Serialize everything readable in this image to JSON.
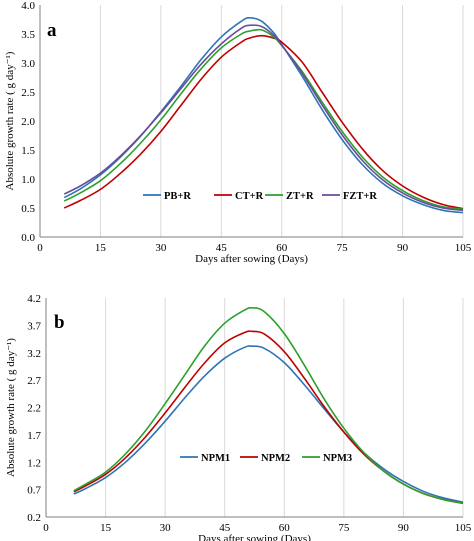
{
  "chart_data": [
    {
      "type": "line",
      "panel_label": "a",
      "xlabel": "Days after sowing (Days)",
      "ylabel": "Absolute growth rate ( g day⁻¹)",
      "xlim": [
        0,
        105
      ],
      "ylim": [
        0,
        4.0
      ],
      "x_ticks": [
        0,
        15,
        30,
        45,
        60,
        75,
        90,
        105
      ],
      "y_ticks": [
        0.0,
        0.5,
        1.0,
        1.5,
        2.0,
        2.5,
        3.0,
        3.5,
        4.0
      ],
      "y_tick_labels": [
        "0.0",
        "0.5",
        "1.0",
        "1.5",
        "2.0",
        "2.5",
        "3.0",
        "3.5",
        "4.0"
      ],
      "grid": "vertical",
      "legend_position": "bottom-center",
      "x": [
        6,
        10,
        15,
        20,
        25,
        30,
        35,
        40,
        45,
        50,
        52,
        55,
        58,
        60,
        65,
        70,
        75,
        80,
        85,
        90,
        95,
        100,
        105
      ],
      "series": [
        {
          "name": "PB+R",
          "color": "#2e75b6",
          "values": [
            0.68,
            0.83,
            1.07,
            1.38,
            1.74,
            2.16,
            2.6,
            3.06,
            3.45,
            3.72,
            3.78,
            3.72,
            3.52,
            3.32,
            2.78,
            2.2,
            1.68,
            1.25,
            0.93,
            0.71,
            0.56,
            0.46,
            0.42
          ]
        },
        {
          "name": "CT+R",
          "color": "#c00000",
          "values": [
            0.5,
            0.63,
            0.82,
            1.1,
            1.43,
            1.82,
            2.27,
            2.72,
            3.1,
            3.36,
            3.43,
            3.47,
            3.43,
            3.36,
            3.02,
            2.5,
            1.98,
            1.52,
            1.15,
            0.88,
            0.69,
            0.56,
            0.49
          ]
        },
        {
          "name": "ZT+R",
          "color": "#2ca02c",
          "values": [
            0.62,
            0.76,
            0.97,
            1.27,
            1.62,
            2.02,
            2.47,
            2.9,
            3.26,
            3.5,
            3.55,
            3.57,
            3.45,
            3.3,
            2.86,
            2.33,
            1.82,
            1.38,
            1.04,
            0.8,
            0.63,
            0.52,
            0.48
          ]
        },
        {
          "name": "FZT+R",
          "color": "#6b4c9a",
          "values": [
            0.74,
            0.88,
            1.1,
            1.4,
            1.75,
            2.14,
            2.56,
            2.98,
            3.33,
            3.6,
            3.65,
            3.63,
            3.48,
            3.31,
            2.83,
            2.28,
            1.76,
            1.32,
            0.99,
            0.76,
            0.6,
            0.5,
            0.46
          ]
        }
      ]
    },
    {
      "type": "line",
      "panel_label": "b",
      "xlabel": "Days after sowing (Days)",
      "ylabel": "Absolute growth rate ( g day⁻¹)",
      "xlim": [
        0,
        105
      ],
      "ylim": [
        0.2,
        4.2
      ],
      "x_ticks": [
        0,
        15,
        30,
        45,
        60,
        75,
        90,
        105
      ],
      "y_ticks": [
        0.2,
        0.7,
        1.2,
        1.7,
        2.2,
        2.7,
        3.2,
        3.7,
        4.2
      ],
      "y_tick_labels": [
        "0.2",
        "0.7",
        "1.2",
        "1.7",
        "2.2",
        "2.7",
        "3.2",
        "3.7",
        "4.2"
      ],
      "grid": "vertical",
      "legend_position": "bottom-center",
      "x": [
        7,
        10,
        15,
        20,
        25,
        30,
        35,
        40,
        45,
        50,
        52,
        55,
        60,
        65,
        70,
        75,
        80,
        85,
        90,
        95,
        100,
        105
      ],
      "series": [
        {
          "name": "NPM1",
          "color": "#2e75b6",
          "values": [
            0.62,
            0.72,
            0.92,
            1.2,
            1.55,
            1.95,
            2.38,
            2.78,
            3.1,
            3.3,
            3.32,
            3.28,
            3.02,
            2.62,
            2.18,
            1.75,
            1.38,
            1.08,
            0.85,
            0.67,
            0.55,
            0.47
          ]
        },
        {
          "name": "NPM2",
          "color": "#c00000",
          "values": [
            0.66,
            0.77,
            0.98,
            1.28,
            1.66,
            2.1,
            2.57,
            3.02,
            3.38,
            3.57,
            3.59,
            3.54,
            3.22,
            2.74,
            2.22,
            1.75,
            1.35,
            1.04,
            0.8,
            0.63,
            0.52,
            0.45
          ]
        },
        {
          "name": "NPM3",
          "color": "#2ca02c",
          "values": [
            0.68,
            0.8,
            1.02,
            1.35,
            1.77,
            2.27,
            2.8,
            3.33,
            3.74,
            3.98,
            4.02,
            3.95,
            3.55,
            2.98,
            2.36,
            1.82,
            1.38,
            1.04,
            0.8,
            0.63,
            0.52,
            0.45
          ]
        }
      ]
    }
  ]
}
